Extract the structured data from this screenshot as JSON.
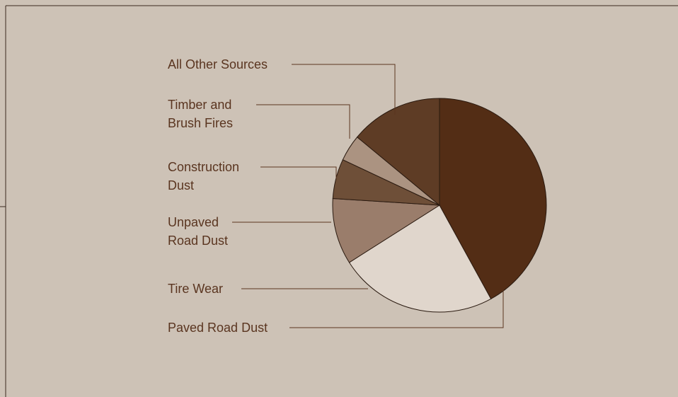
{
  "chart_data": {
    "type": "pie",
    "categories": [
      "Paved Road Dust",
      "Tire Wear",
      "Unpaved Road Dust",
      "Construction Dust",
      "Timber and Brush Fires",
      "All Other Sources"
    ],
    "values": [
      42,
      24,
      10,
      6,
      4,
      14
    ],
    "colors": [
      "#532d15",
      "#e0d6cc",
      "#9a7d6b",
      "#6e4f38",
      "#ab9381",
      "#5e3c25"
    ]
  }
}
